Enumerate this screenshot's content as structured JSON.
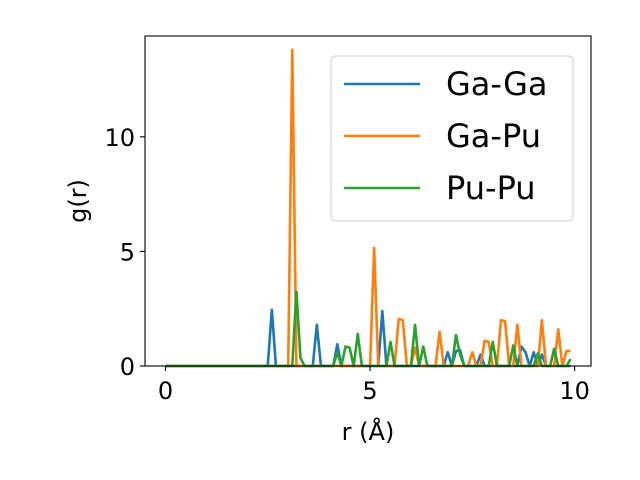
{
  "chart_data": {
    "type": "line",
    "title": "",
    "xlabel": "r (Å)",
    "ylabel": "g(r)",
    "xlim": [
      -0.5,
      10.4
    ],
    "ylim": [
      0,
      14.4
    ],
    "xticks": [
      0,
      5,
      10
    ],
    "yticks": [
      0,
      5,
      10
    ],
    "xtick_labels": [
      "0",
      "5",
      "10"
    ],
    "ytick_labels": [
      "0",
      "5",
      "10"
    ],
    "grid": false,
    "legend_position": "top-right",
    "x": [
      0.0,
      0.1,
      0.2,
      0.3,
      0.4,
      0.5,
      0.6,
      0.7,
      0.8,
      0.9,
      1.0,
      1.1,
      1.2,
      1.3,
      1.4,
      1.5,
      1.6,
      1.7,
      1.8,
      1.9,
      2.0,
      2.1,
      2.2,
      2.3,
      2.4,
      2.5,
      2.6,
      2.7,
      2.8,
      2.9,
      3.0,
      3.1,
      3.2,
      3.3,
      3.4,
      3.5,
      3.6,
      3.7,
      3.8,
      3.9,
      4.0,
      4.1,
      4.2,
      4.3,
      4.4,
      4.5,
      4.6,
      4.7,
      4.8,
      4.9,
      5.0,
      5.1,
      5.2,
      5.3,
      5.4,
      5.5,
      5.6,
      5.7,
      5.8,
      5.9,
      6.0,
      6.1,
      6.2,
      6.3,
      6.4,
      6.5,
      6.6,
      6.7,
      6.8,
      6.9,
      7.0,
      7.1,
      7.2,
      7.3,
      7.4,
      7.5,
      7.6,
      7.7,
      7.8,
      7.9,
      8.0,
      8.1,
      8.2,
      8.3,
      8.4,
      8.5,
      8.6,
      8.7,
      8.8,
      8.9,
      9.0,
      9.1,
      9.2,
      9.3,
      9.4,
      9.5,
      9.6,
      9.7,
      9.8,
      9.9
    ],
    "series": [
      {
        "name": "Ga-Ga",
        "color": "#1f77b4",
        "values": [
          0,
          0,
          0,
          0,
          0,
          0,
          0,
          0,
          0,
          0,
          0,
          0,
          0,
          0,
          0,
          0,
          0,
          0,
          0,
          0,
          0,
          0,
          0,
          0,
          0,
          0,
          2.45,
          0,
          0,
          0,
          0,
          0,
          0,
          0,
          0,
          0,
          0,
          1.8,
          0,
          0,
          0,
          0,
          0.95,
          0,
          0,
          0,
          0,
          0,
          0,
          0,
          0,
          0,
          0,
          2.4,
          0,
          0,
          0,
          0,
          0,
          0,
          0,
          0,
          0,
          0,
          0,
          0,
          0,
          0,
          0,
          0.6,
          0,
          0.65,
          0.7,
          0,
          0,
          0,
          0,
          0.5,
          0,
          0,
          0,
          0,
          0,
          0,
          0,
          0,
          0,
          0.85,
          0.6,
          0,
          0.6,
          0,
          0.5,
          0,
          0,
          0,
          0,
          0,
          0,
          0
        ]
      },
      {
        "name": "Ga-Pu",
        "color": "#ff7f0e",
        "values": [
          0,
          0,
          0,
          0,
          0,
          0,
          0,
          0,
          0,
          0,
          0,
          0,
          0,
          0,
          0,
          0,
          0,
          0,
          0,
          0,
          0,
          0,
          0,
          0,
          0,
          0,
          0,
          0,
          0,
          0,
          0,
          13.8,
          0,
          0,
          0,
          0,
          0,
          0,
          0,
          0,
          0,
          0,
          0,
          0,
          0,
          0,
          0,
          0,
          0,
          0,
          0,
          5.15,
          0,
          0,
          0,
          0,
          0,
          2.05,
          2.0,
          0,
          0,
          0.8,
          0,
          0,
          0,
          0,
          0,
          1.5,
          0,
          0,
          0,
          0,
          0,
          0,
          0,
          0.6,
          0,
          0,
          1.1,
          1.05,
          0,
          0,
          2.0,
          1.95,
          0,
          0,
          1.8,
          0,
          0,
          0,
          0,
          0,
          2.0,
          0,
          0,
          0,
          1.6,
          0,
          0.65,
          0.65
        ]
      },
      {
        "name": "Pu-Pu",
        "color": "#2ca02c",
        "values": [
          0,
          0,
          0,
          0,
          0,
          0,
          0,
          0,
          0,
          0,
          0,
          0,
          0,
          0,
          0,
          0,
          0,
          0,
          0,
          0,
          0,
          0,
          0,
          0,
          0,
          0,
          0,
          0,
          0,
          0,
          0,
          0,
          3.25,
          0.35,
          0,
          0,
          0,
          0,
          0,
          0,
          0,
          0,
          0.6,
          0,
          0.85,
          0.8,
          0,
          1.4,
          0,
          0,
          0,
          0,
          0,
          0,
          0,
          1.05,
          0,
          0,
          0,
          0,
          0,
          1.8,
          0,
          0.85,
          0,
          0,
          0,
          0,
          0,
          0,
          0,
          1.35,
          0.5,
          0,
          0,
          0,
          0,
          0,
          0,
          0,
          1.05,
          0,
          0,
          0,
          0,
          0.9,
          0,
          0,
          0,
          0,
          0,
          0.55,
          0,
          0,
          0,
          0.75,
          0,
          0,
          0,
          0.3
        ]
      }
    ]
  }
}
